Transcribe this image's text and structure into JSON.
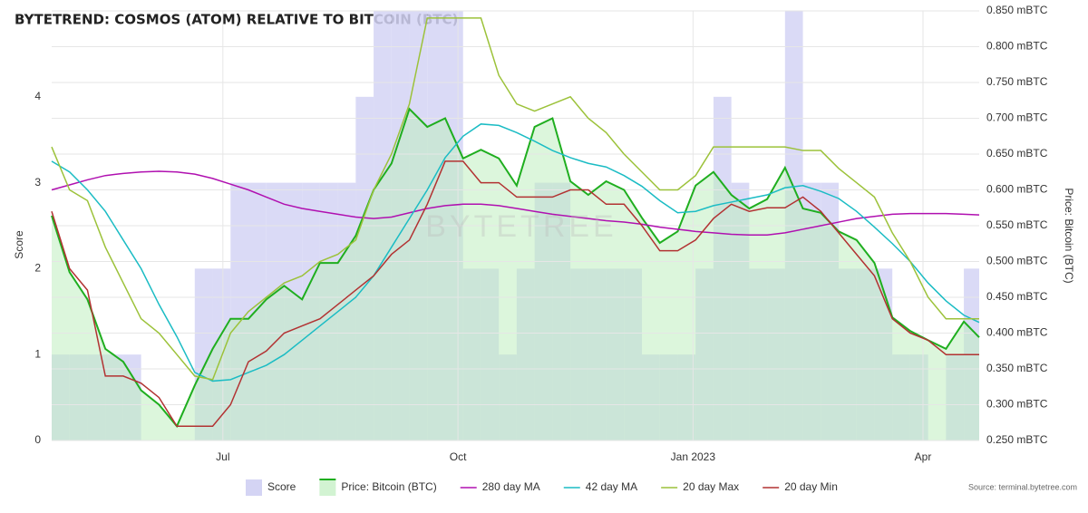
{
  "chart_data": {
    "type": "line",
    "title": "BYTETREND: COSMOS (ATOM) RELATIVE TO BITCOIN (BTC)",
    "watermark": "BYTETREE",
    "source": "Source: terminal.bytetree.com",
    "y_label": "Score",
    "y2_label": "Price: Bitcoin (BTC)",
    "x": [
      0,
      7,
      14,
      21,
      28,
      35,
      42,
      49,
      56,
      63,
      70,
      77,
      84,
      91,
      98,
      105,
      112,
      119,
      126,
      133,
      140,
      147,
      154,
      161,
      168,
      175,
      182,
      189,
      196,
      203,
      210,
      217,
      224,
      231,
      238,
      245,
      252,
      259,
      266,
      273,
      280,
      287,
      294,
      301,
      308,
      315,
      322,
      329,
      336,
      343,
      350,
      357,
      363
    ],
    "xlim": [
      0,
      363
    ],
    "xticks": [
      {
        "value": 67,
        "label": "Jul"
      },
      {
        "value": 159,
        "label": "Oct"
      },
      {
        "value": 251,
        "label": "Jan 2023"
      },
      {
        "value": 341,
        "label": "Apr"
      }
    ],
    "ylim": [
      0,
      5
    ],
    "yticks": [
      0,
      1,
      2,
      3,
      4
    ],
    "y2lim": [
      0.25,
      0.85
    ],
    "y2ticks": [
      {
        "value": 0.25,
        "label": "0.250 mBTC"
      },
      {
        "value": 0.3,
        "label": "0.300 mBTC"
      },
      {
        "value": 0.35,
        "label": "0.350 mBTC"
      },
      {
        "value": 0.4,
        "label": "0.400 mBTC"
      },
      {
        "value": 0.45,
        "label": "0.450 mBTC"
      },
      {
        "value": 0.5,
        "label": "0.500 mBTC"
      },
      {
        "value": 0.55,
        "label": "0.550 mBTC"
      },
      {
        "value": 0.6,
        "label": "0.600 mBTC"
      },
      {
        "value": 0.65,
        "label": "0.650 mBTC"
      },
      {
        "value": 0.7,
        "label": "0.700 mBTC"
      },
      {
        "value": 0.75,
        "label": "0.750 mBTC"
      },
      {
        "value": 0.8,
        "label": "0.800 mBTC"
      },
      {
        "value": 0.85,
        "label": "0.850 mBTC"
      }
    ],
    "grid": true,
    "legend": "bottom",
    "series": [
      {
        "name": "Score",
        "style": "step-area",
        "color": "#d4d4f4",
        "axis": "y",
        "values": [
          1,
          1,
          1,
          1,
          1,
          0,
          0,
          0,
          2,
          2,
          3,
          3,
          3,
          3,
          3,
          3,
          3,
          4,
          5,
          5,
          5,
          5,
          5,
          2,
          2,
          1,
          2,
          3,
          3,
          2,
          2,
          2,
          2,
          1,
          1,
          1,
          2,
          4,
          3,
          2,
          2,
          5,
          3,
          3,
          2,
          2,
          2,
          1,
          1,
          0,
          1,
          2,
          2
        ]
      },
      {
        "name": "Price: Bitcoin (BTC)",
        "style": "area-line",
        "color": "#1fae1f",
        "fill": "#bfeebf",
        "axis": "y2",
        "values": [
          0.564,
          0.485,
          0.447,
          0.378,
          0.36,
          0.32,
          0.3,
          0.27,
          0.327,
          0.378,
          0.42,
          0.42,
          0.447,
          0.466,
          0.447,
          0.498,
          0.498,
          0.536,
          0.6,
          0.637,
          0.713,
          0.688,
          0.7,
          0.644,
          0.656,
          0.644,
          0.606,
          0.688,
          0.7,
          0.612,
          0.593,
          0.612,
          0.6,
          0.561,
          0.526,
          0.542,
          0.606,
          0.625,
          0.593,
          0.574,
          0.587,
          0.631,
          0.574,
          0.568,
          0.542,
          0.53,
          0.498,
          0.422,
          0.403,
          0.39,
          0.378,
          0.416,
          0.394
        ]
      },
      {
        "name": "280 day MA",
        "style": "line",
        "color": "#b010b0",
        "axis": "y2",
        "values": [
          0.6,
          0.607,
          0.614,
          0.62,
          0.623,
          0.625,
          0.626,
          0.625,
          0.622,
          0.616,
          0.608,
          0.6,
          0.59,
          0.58,
          0.574,
          0.57,
          0.566,
          0.562,
          0.56,
          0.562,
          0.568,
          0.574,
          0.578,
          0.58,
          0.58,
          0.578,
          0.574,
          0.57,
          0.566,
          0.563,
          0.56,
          0.557,
          0.555,
          0.552,
          0.548,
          0.545,
          0.542,
          0.54,
          0.538,
          0.537,
          0.537,
          0.54,
          0.545,
          0.55,
          0.555,
          0.56,
          0.563,
          0.566,
          0.567,
          0.567,
          0.567,
          0.566,
          0.565
        ]
      },
      {
        "name": "42 day MA",
        "style": "line",
        "color": "#1bbcc4",
        "axis": "y2",
        "values": [
          0.64,
          0.625,
          0.6,
          0.57,
          0.53,
          0.49,
          0.44,
          0.395,
          0.345,
          0.333,
          0.335,
          0.345,
          0.355,
          0.37,
          0.39,
          0.41,
          0.43,
          0.45,
          0.48,
          0.52,
          0.56,
          0.6,
          0.645,
          0.675,
          0.692,
          0.69,
          0.68,
          0.668,
          0.655,
          0.645,
          0.637,
          0.632,
          0.62,
          0.605,
          0.585,
          0.568,
          0.57,
          0.578,
          0.583,
          0.588,
          0.593,
          0.603,
          0.606,
          0.598,
          0.588,
          0.57,
          0.548,
          0.525,
          0.5,
          0.47,
          0.445,
          0.425,
          0.415
        ]
      },
      {
        "name": "20 day Max",
        "style": "line",
        "color": "#9cc23a",
        "axis": "y2",
        "values": [
          0.66,
          0.6,
          0.585,
          0.52,
          0.47,
          0.42,
          0.4,
          0.37,
          0.34,
          0.335,
          0.4,
          0.43,
          0.45,
          0.47,
          0.48,
          0.5,
          0.51,
          0.53,
          0.6,
          0.65,
          0.72,
          0.84,
          0.84,
          0.84,
          0.84,
          0.76,
          0.72,
          0.71,
          0.72,
          0.73,
          0.7,
          0.68,
          0.65,
          0.625,
          0.6,
          0.6,
          0.62,
          0.66,
          0.66,
          0.66,
          0.66,
          0.66,
          0.655,
          0.655,
          0.63,
          0.61,
          0.59,
          0.54,
          0.5,
          0.45,
          0.42,
          0.42,
          0.42
        ]
      },
      {
        "name": "20 day Min",
        "style": "line",
        "color": "#b23232",
        "axis": "y2",
        "values": [
          0.57,
          0.49,
          0.46,
          0.34,
          0.34,
          0.33,
          0.31,
          0.27,
          0.27,
          0.27,
          0.3,
          0.36,
          0.375,
          0.4,
          0.41,
          0.42,
          0.44,
          0.46,
          0.48,
          0.51,
          0.53,
          0.58,
          0.64,
          0.64,
          0.61,
          0.61,
          0.59,
          0.59,
          0.59,
          0.6,
          0.6,
          0.58,
          0.58,
          0.55,
          0.515,
          0.515,
          0.53,
          0.56,
          0.58,
          0.57,
          0.575,
          0.575,
          0.59,
          0.57,
          0.54,
          0.51,
          0.48,
          0.42,
          0.4,
          0.39,
          0.37,
          0.37,
          0.37
        ]
      }
    ]
  }
}
